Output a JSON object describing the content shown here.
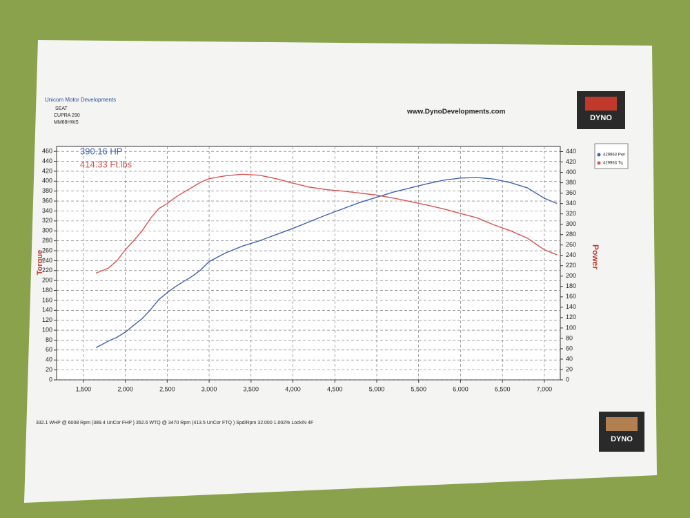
{
  "header": {
    "company": "Unicom Motor Developments",
    "make": "SEAT",
    "model": "CUPRA 290",
    "registration": "MM68HWS",
    "website": "www.DynoDevelopments.com",
    "logo": "DYNO"
  },
  "chart_data": {
    "type": "line",
    "annotations": [
      "390.16 HP",
      "414.33 Ft.lbs"
    ],
    "y_label": "Torque",
    "y2_label": "Power",
    "x": [
      1650,
      1800,
      1900,
      2000,
      2100,
      2200,
      2300,
      2400,
      2500,
      2600,
      2700,
      2800,
      2900,
      3000,
      3200,
      3400,
      3600,
      3800,
      4000,
      4200,
      4400,
      4600,
      4800,
      5000,
      5200,
      5400,
      5600,
      5800,
      6000,
      6200,
      6400,
      6600,
      6800,
      7000,
      7150
    ],
    "series": [
      {
        "name": "429963 Pwr",
        "color": "#3d62b3",
        "axis": "y2",
        "values": [
          62,
          75,
          82,
          92,
          105,
          118,
          135,
          155,
          168,
          180,
          190,
          200,
          212,
          228,
          245,
          258,
          268,
          280,
          292,
          305,
          318,
          330,
          342,
          352,
          362,
          370,
          378,
          385,
          389,
          390,
          387,
          380,
          370,
          350,
          340
        ]
      },
      {
        "name": "429963 Tq",
        "color": "#d9534f",
        "values": [
          215,
          225,
          240,
          262,
          280,
          300,
          325,
          345,
          355,
          368,
          378,
          388,
          398,
          405,
          411,
          414,
          412,
          405,
          396,
          388,
          383,
          380,
          376,
          372,
          366,
          359,
          352,
          344,
          335,
          326,
          312,
          300,
          285,
          262,
          252
        ]
      }
    ],
    "xlim": [
      1180,
      7190
    ],
    "xticks": [
      {
        "value": 1500,
        "label": "1,500"
      },
      {
        "value": 2000,
        "label": "2,000"
      },
      {
        "value": 2500,
        "label": "2,500"
      },
      {
        "value": 3000,
        "label": "3,000"
      },
      {
        "value": 3500,
        "label": "3,500"
      },
      {
        "value": 4000,
        "label": "4,000"
      },
      {
        "value": 4500,
        "label": "4,500"
      },
      {
        "value": 5000,
        "label": "5,000"
      },
      {
        "value": 5500,
        "label": "5,500"
      },
      {
        "value": 6000,
        "label": "6,000"
      },
      {
        "value": 6500,
        "label": "6,500"
      },
      {
        "value": 7000,
        "label": "7,000"
      }
    ],
    "ylim": [
      0,
      470
    ],
    "yticks": [
      0,
      20,
      40,
      60,
      80,
      100,
      120,
      140,
      160,
      180,
      200,
      220,
      240,
      260,
      280,
      300,
      320,
      340,
      360,
      380,
      400,
      420,
      440,
      460
    ],
    "y2lim": [
      0,
      450
    ],
    "y2ticks": [
      0,
      20,
      40,
      60,
      80,
      100,
      120,
      140,
      160,
      180,
      200,
      220,
      240,
      260,
      280,
      300,
      320,
      340,
      360,
      380,
      400,
      420,
      440
    ],
    "grid": true
  },
  "footer": "332.1 WHP @ 6008 Rpm (389.4 UnCor FHP )  352.6 WTQ @ 3470 Rpm (413.5 UnCor FTQ ) Spd/Rpm 32.000 1.002% LockIN 4F"
}
